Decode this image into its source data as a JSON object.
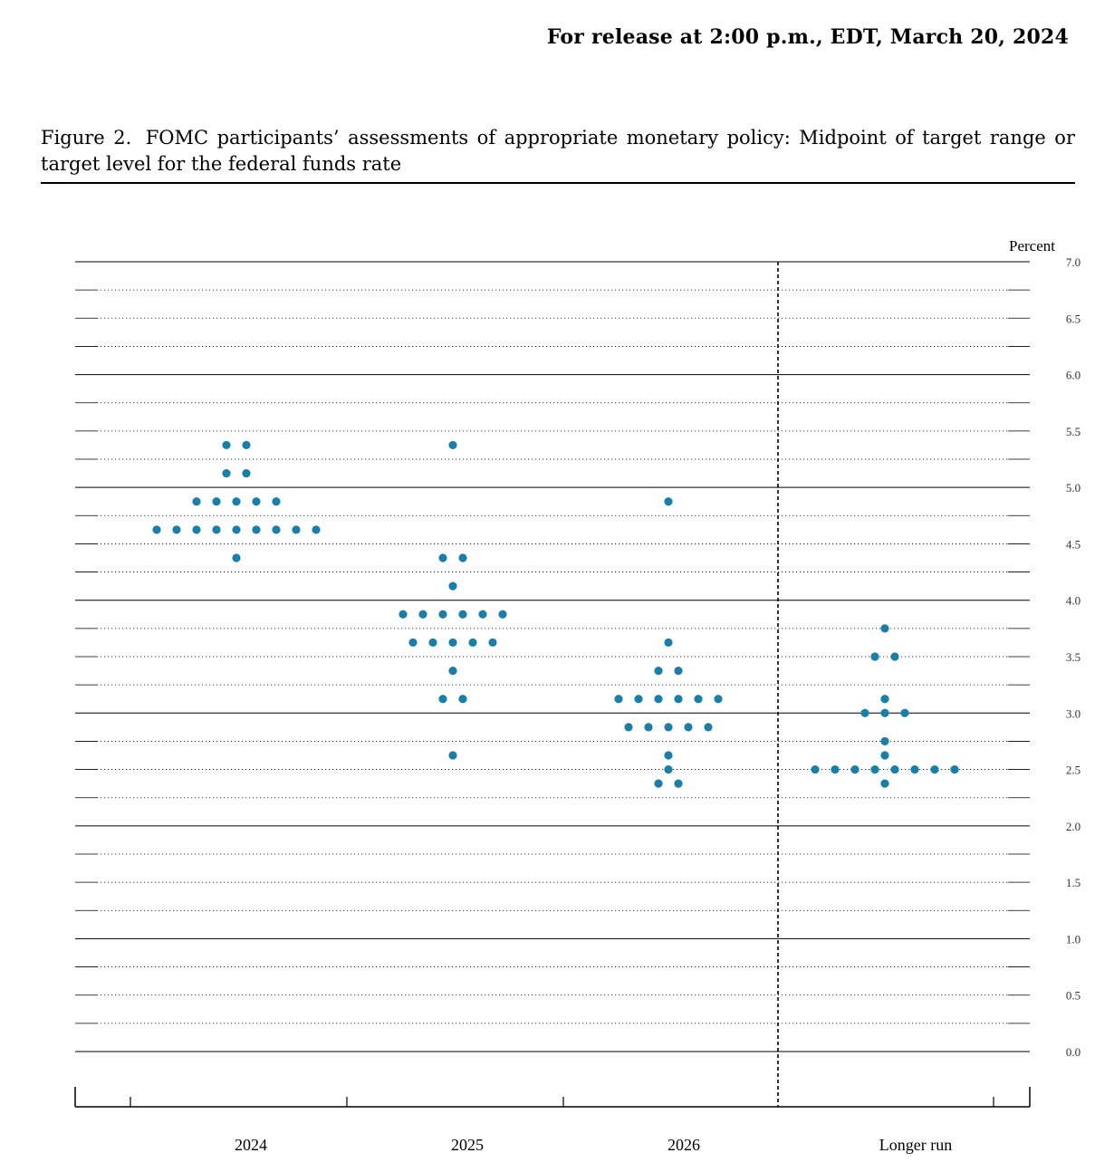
{
  "header": {
    "release_line": "For release at 2:00 p.m., EDT, March 20, 2024"
  },
  "figure": {
    "lead": "Figure 2.",
    "title": "FOMC participants’ assessments of appropriate monetary policy: Midpoint of target range or target level for the federal funds rate"
  },
  "colors": {
    "dot": "#1a7fa8",
    "grid": "#000000"
  },
  "chart_data": {
    "type": "scatter",
    "title": "FOMC participants’ assessments of appropriate monetary policy: Midpoint of target range or target level for the federal funds rate",
    "ylabel": "Percent",
    "xlabel": "",
    "ylim": [
      0,
      7
    ],
    "y_step_minor": 0.25,
    "yticks": [
      "0.0",
      "0.5",
      "1.0",
      "1.5",
      "2.0",
      "2.5",
      "3.0",
      "3.5",
      "4.0",
      "4.5",
      "5.0",
      "5.5",
      "6.0",
      "6.5",
      "7.0"
    ],
    "categories": [
      "2024",
      "2025",
      "2026",
      "Longer run"
    ],
    "series": [
      {
        "name": "2024",
        "points": [
          {
            "y": 5.375,
            "count": 2
          },
          {
            "y": 5.125,
            "count": 2
          },
          {
            "y": 4.875,
            "count": 5
          },
          {
            "y": 4.625,
            "count": 9
          },
          {
            "y": 4.375,
            "count": 1
          }
        ]
      },
      {
        "name": "2025",
        "points": [
          {
            "y": 5.375,
            "count": 1
          },
          {
            "y": 4.375,
            "count": 2
          },
          {
            "y": 4.125,
            "count": 1
          },
          {
            "y": 3.875,
            "count": 6
          },
          {
            "y": 3.625,
            "count": 5
          },
          {
            "y": 3.375,
            "count": 1
          },
          {
            "y": 3.125,
            "count": 2
          },
          {
            "y": 2.625,
            "count": 1
          }
        ]
      },
      {
        "name": "2026",
        "points": [
          {
            "y": 4.875,
            "count": 1
          },
          {
            "y": 3.625,
            "count": 1
          },
          {
            "y": 3.375,
            "count": 2
          },
          {
            "y": 3.125,
            "count": 6
          },
          {
            "y": 2.875,
            "count": 5
          },
          {
            "y": 2.625,
            "count": 1
          },
          {
            "y": 2.5,
            "count": 1
          },
          {
            "y": 2.375,
            "count": 2
          }
        ]
      },
      {
        "name": "Longer run",
        "points": [
          {
            "y": 3.75,
            "count": 1
          },
          {
            "y": 3.5,
            "count": 2
          },
          {
            "y": 3.125,
            "count": 1
          },
          {
            "y": 3.0,
            "count": 3
          },
          {
            "y": 2.75,
            "count": 1
          },
          {
            "y": 2.625,
            "count": 1
          },
          {
            "y": 2.5,
            "count": 8
          },
          {
            "y": 2.375,
            "count": 1
          }
        ]
      }
    ]
  }
}
